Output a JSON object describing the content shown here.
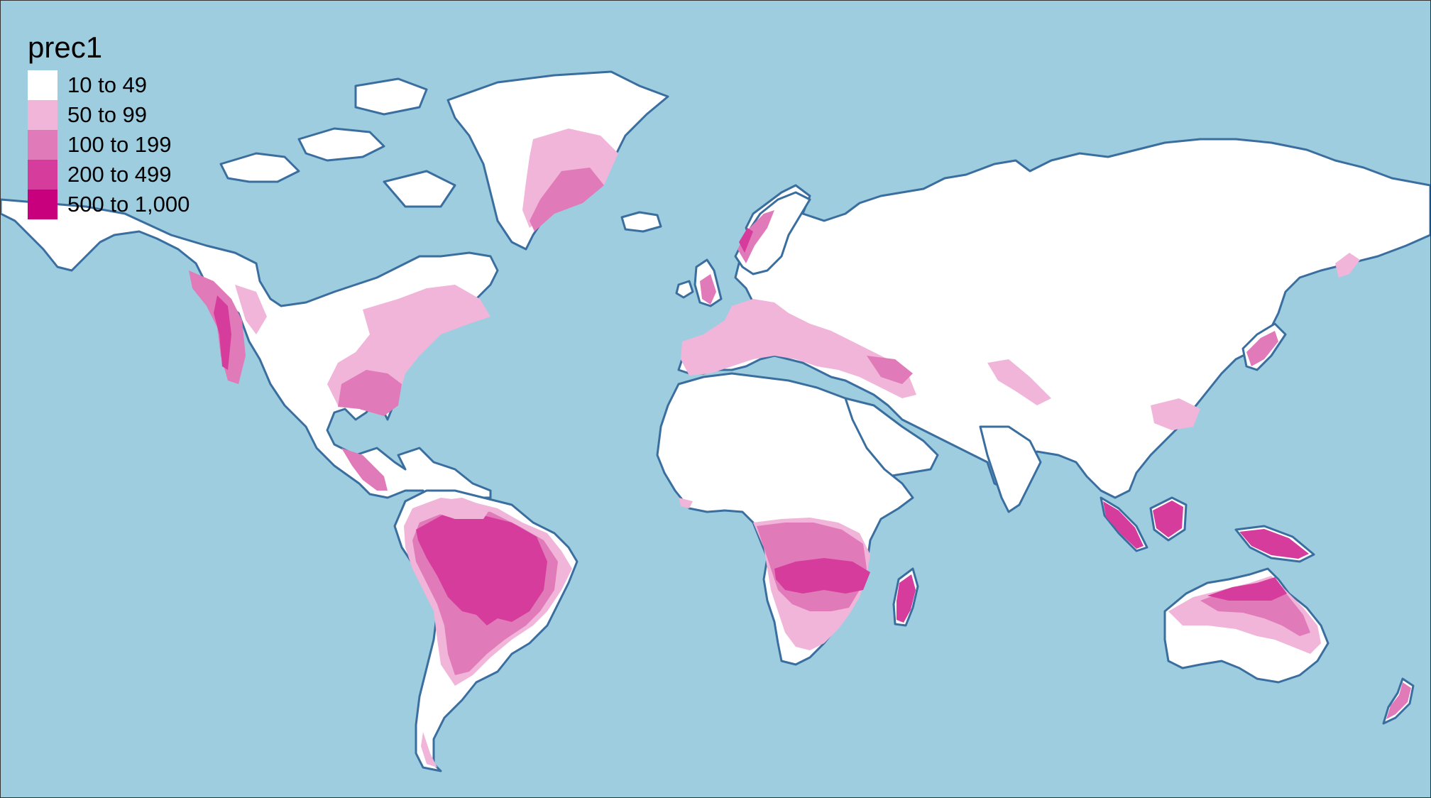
{
  "legend": {
    "title": "prec1",
    "classes": [
      {
        "label": "10 to 49",
        "color": "#ffffff"
      },
      {
        "label": "50 to 99",
        "color": "#f0b5d9"
      },
      {
        "label": "100 to 199",
        "color": "#e07ab9"
      },
      {
        "label": "200 to 499",
        "color": "#d63c9c"
      },
      {
        "label": "500 to 1,000",
        "color": "#c8007e"
      }
    ]
  },
  "colors": {
    "ocean": "#9ecde0",
    "coastline": "#3a6e9f"
  }
}
